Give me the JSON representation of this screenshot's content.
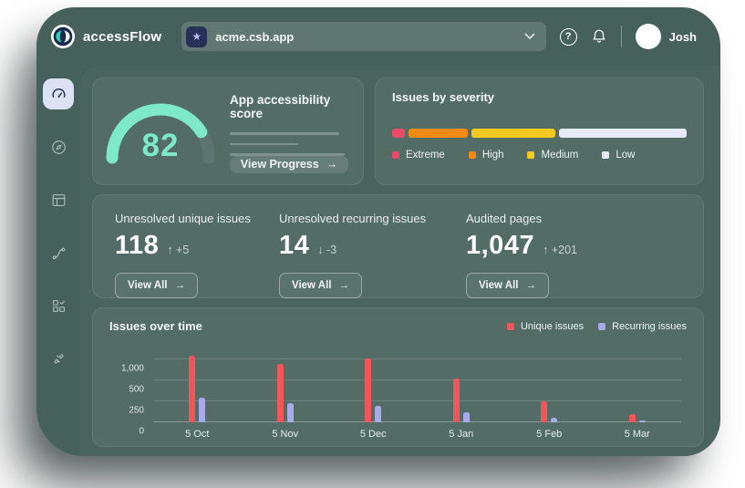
{
  "topbar": {
    "brand": "accessFlow",
    "project_selector": {
      "value": "acme.csb.app"
    },
    "user": {
      "name": "Josh"
    }
  },
  "sidebar": {
    "items": [
      {
        "id": "dashboard",
        "icon": "gauge-icon",
        "active": true
      },
      {
        "id": "explore",
        "icon": "compass-icon",
        "active": false
      },
      {
        "id": "pages",
        "icon": "layout-icon",
        "active": false
      },
      {
        "id": "flows",
        "icon": "flow-icon",
        "active": false
      },
      {
        "id": "audits",
        "icon": "grid-check-icon",
        "active": false
      },
      {
        "id": "integrations",
        "icon": "plug-icon",
        "active": false
      }
    ]
  },
  "score_card": {
    "title": "App accessibility score",
    "score": 82,
    "max": 100,
    "score_color": "#7de9c6",
    "track_color": "#5d7470",
    "button_label": "View Progress",
    "button_arrow": "→"
  },
  "severity_card": {
    "title": "Issues by severity",
    "segments": [
      {
        "label": "Extreme",
        "color": "#eb4a69",
        "percent": 4.5
      },
      {
        "label": "High",
        "color": "#f28b16",
        "percent": 21
      },
      {
        "label": "Medium",
        "color": "#f4c922",
        "percent": 29.5
      },
      {
        "label": "Low",
        "color": "#e7eaf8",
        "percent": 45
      }
    ]
  },
  "stats_card": {
    "items": [
      {
        "label": "Unresolved unique issues",
        "value": "118",
        "trend_arrow": "↑",
        "delta": "+5",
        "button_label": "View All",
        "button_arrow": "→"
      },
      {
        "label": "Unresolved recurring issues",
        "value": "14",
        "trend_arrow": "↓",
        "delta": "-3",
        "button_label": "View All",
        "button_arrow": "→"
      },
      {
        "label": "Audited pages",
        "value": "1,047",
        "trend_arrow": "↑",
        "delta": "+201",
        "button_label": "View All",
        "button_arrow": "→"
      }
    ]
  },
  "chart_data": {
    "type": "bar",
    "title": "Issues over time",
    "categories": [
      "5 Oct",
      "5 Nov",
      "5 Dec",
      "5 Jan",
      "5 Feb",
      "5 Mar"
    ],
    "series": [
      {
        "name": "Unique issues",
        "color": "#f2555a",
        "values": [
          1080,
          900,
          1030,
          550,
          255,
          95
        ]
      },
      {
        "name": "Recurring issues",
        "color": "#a7a9ea",
        "values": [
          290,
          230,
          195,
          125,
          50,
          25
        ]
      }
    ],
    "y_ticks": [
      {
        "label": "1,000",
        "value": 1000
      },
      {
        "label": "500",
        "value": 500
      },
      {
        "label": "250",
        "value": 250
      },
      {
        "label": "0",
        "value": 0
      }
    ],
    "ylabel": "",
    "xlabel": "",
    "grid": true,
    "legend_position": "top-right",
    "axis_note": "gridlines evenly spaced at 0 / 250 / 500 / 1,000 (non-linear)"
  }
}
